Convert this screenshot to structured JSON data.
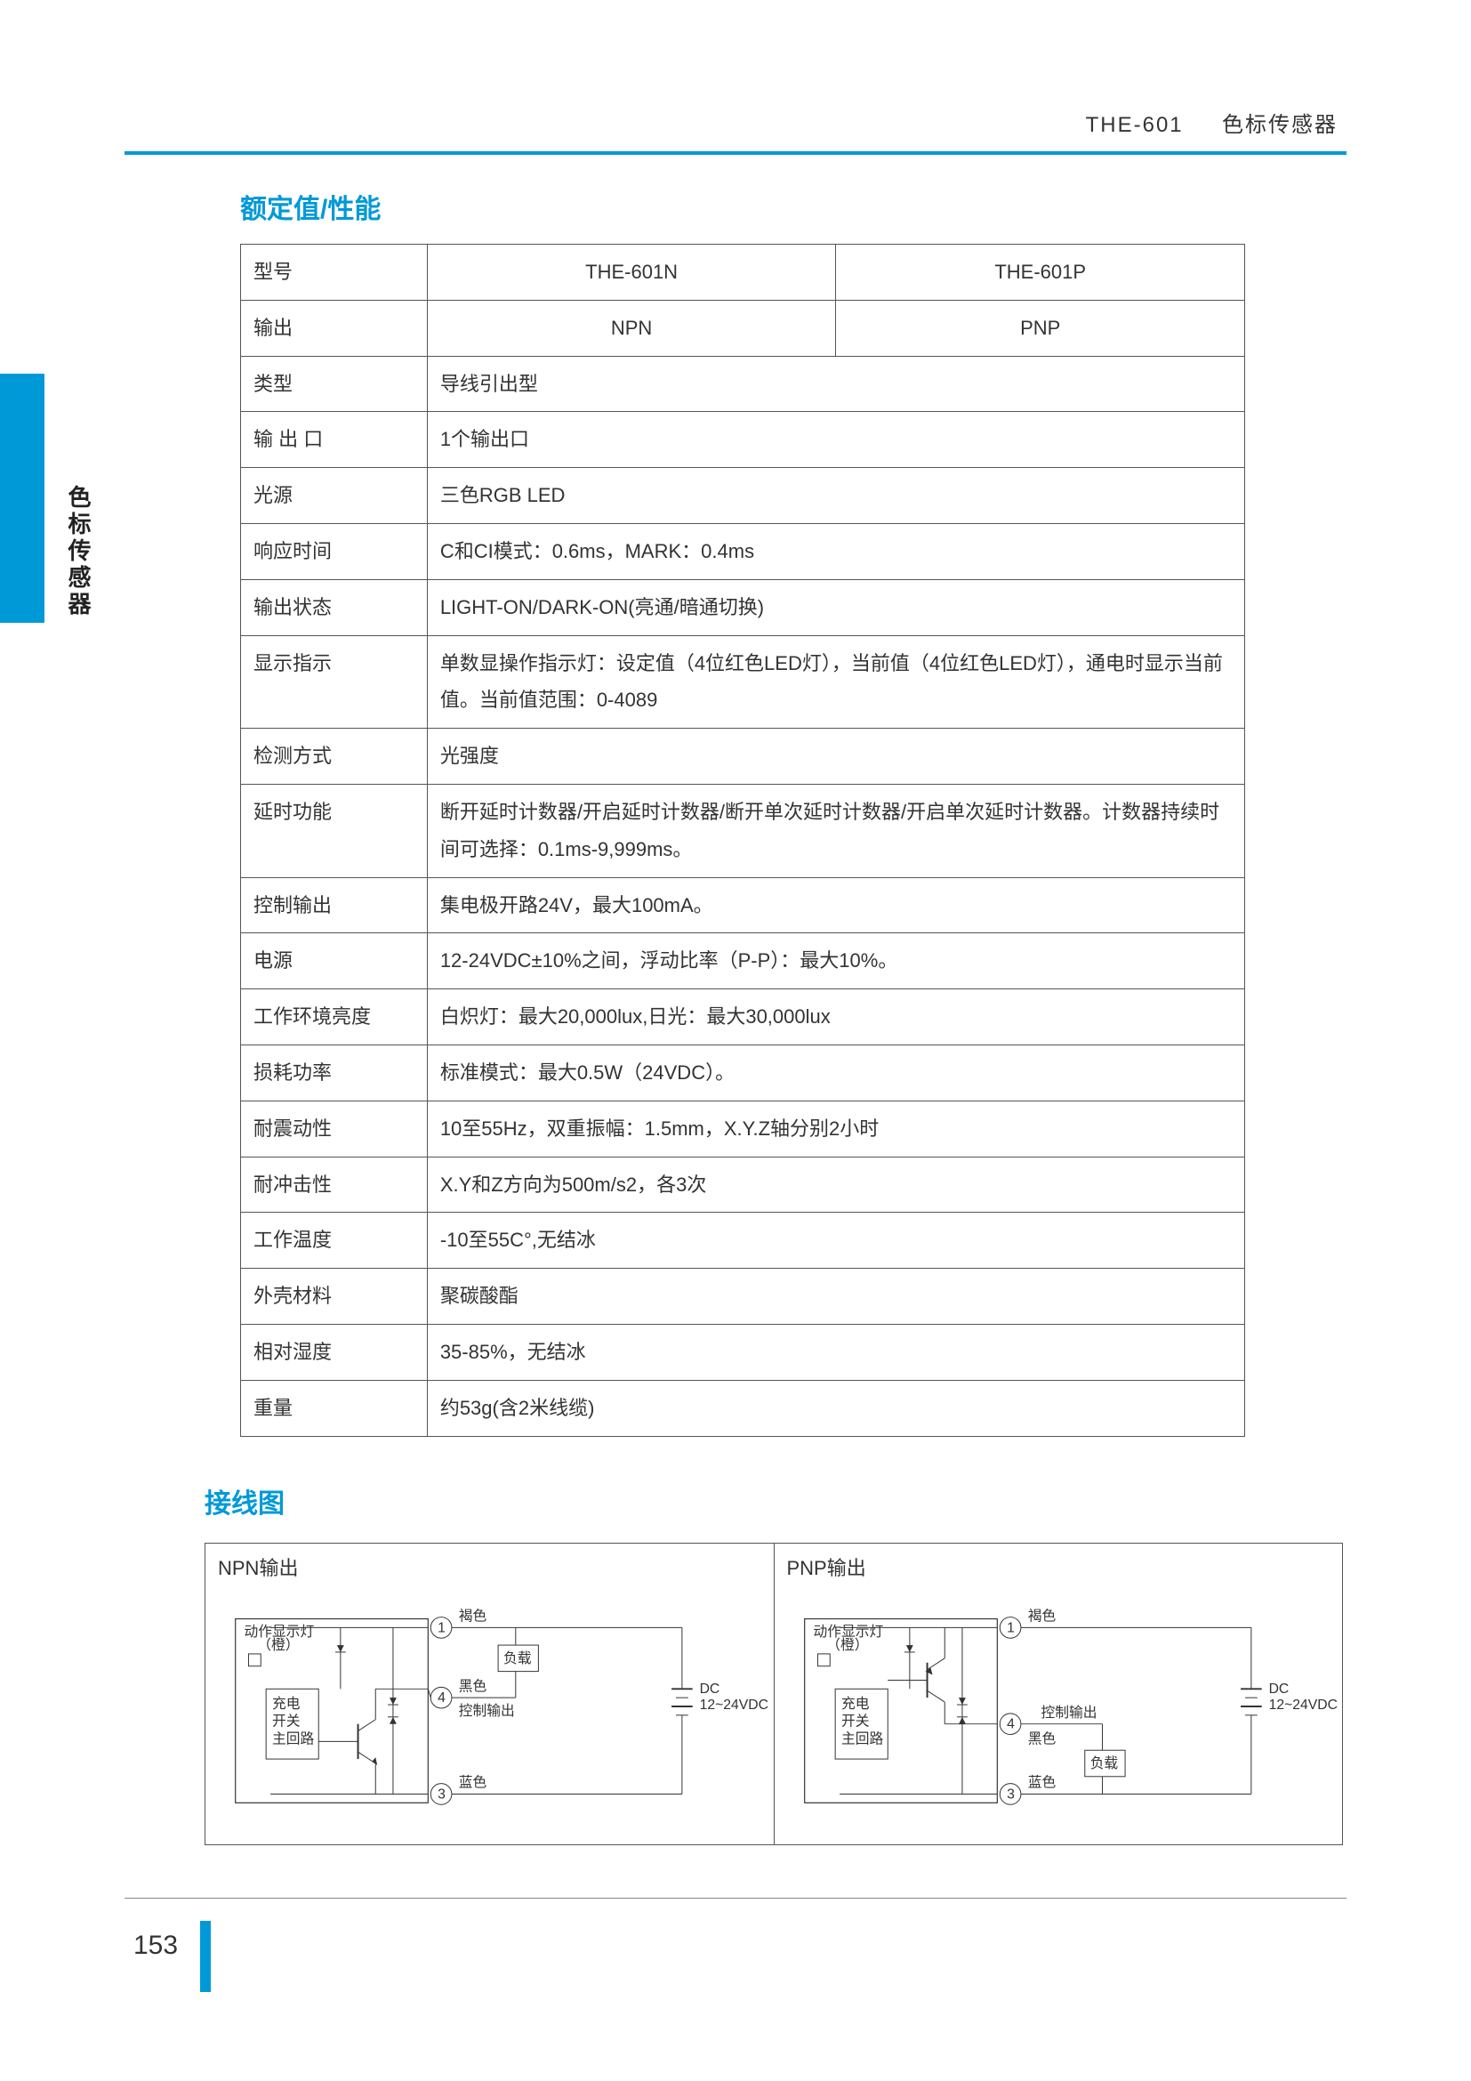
{
  "header": {
    "model": "THE-601",
    "product": "色标传感器"
  },
  "side_label": "色标传感器",
  "sections": {
    "spec_title": "额定值/性能",
    "wiring_title": "接线图"
  },
  "spec": {
    "rows": [
      {
        "label": "型号",
        "col1": "THE-601N",
        "col2": "THE-601P",
        "split": true,
        "center": true
      },
      {
        "label": "输出",
        "col1": "NPN",
        "col2": "PNP",
        "split": true,
        "center": true
      },
      {
        "label": "类型",
        "value": "导线引出型"
      },
      {
        "label": "输 出 口",
        "value": "1个输出口"
      },
      {
        "label": "光源",
        "value": "三色RGB LED"
      },
      {
        "label": "响应时间",
        "value": "C和CI模式：0.6ms，MARK：0.4ms"
      },
      {
        "label": "输出状态",
        "value": "LIGHT-ON/DARK-ON(亮通/暗通切换)"
      },
      {
        "label": "显示指示",
        "value": "单数显操作指示灯：设定值（4位红色LED灯），当前值（4位红色LED灯），通电时显示当前值。当前值范围：0-4089"
      },
      {
        "label": "检测方式",
        "value": "光强度"
      },
      {
        "label": "延时功能",
        "value": "断开延时计数器/开启延时计数器/断开单次延时计数器/开启单次延时计数器。计数器持续时间可选择：0.1ms-9,999ms。"
      },
      {
        "label": "控制输出",
        "value": "集电极开路24V，最大100mA。"
      },
      {
        "label": "电源",
        "value": "12-24VDC±10%之间，浮动比率（P-P）：最大10%。"
      },
      {
        "label": "工作环境亮度",
        "value": "白炽灯：最大20,000lux,日光：最大30,000lux"
      },
      {
        "label": "损耗功率",
        "value": "标准模式：最大0.5W（24VDC）。"
      },
      {
        "label": "耐震动性",
        "value": "10至55Hz，双重振幅：1.5mm，X.Y.Z轴分别2小时"
      },
      {
        "label": "耐冲击性",
        "value": "X.Y和Z方向为500m/s2，各3次"
      },
      {
        "label": "工作温度",
        "value": "-10至55C°,无结冰"
      },
      {
        "label": "外壳材料",
        "value": "聚碳酸酯"
      },
      {
        "label": "相对湿度",
        "value": "35-85%，无结冰"
      },
      {
        "label": "重量",
        "value": "约53g(含2米线缆)"
      }
    ]
  },
  "wiring": {
    "left": {
      "title": "NPN输出",
      "labels": {
        "indicator": "动作显示灯",
        "indicator_sub": "（橙）",
        "main_circuit_l1": "充电",
        "main_circuit_l2": "开关",
        "main_circuit_l3": "主回路",
        "brown": "褐色",
        "black": "黑色",
        "ctrl_out": "控制输出",
        "blue": "蓝色",
        "load": "负载",
        "dc_l1": "DC",
        "dc_l2": "12~24VDC"
      }
    },
    "right": {
      "title": "PNP输出",
      "labels": {
        "indicator": "动作显示灯",
        "indicator_sub": "（橙）",
        "main_circuit_l1": "充电",
        "main_circuit_l2": "开关",
        "main_circuit_l3": "主回路",
        "brown": "褐色",
        "black": "黑色",
        "ctrl_out": "控制输出",
        "blue": "蓝色",
        "load": "负载",
        "dc_l1": "DC",
        "dc_l2": "12~24VDC"
      }
    }
  },
  "page_number": "153",
  "colors": {
    "accent": "#0099d8",
    "border": "#555555",
    "text": "#333333"
  }
}
